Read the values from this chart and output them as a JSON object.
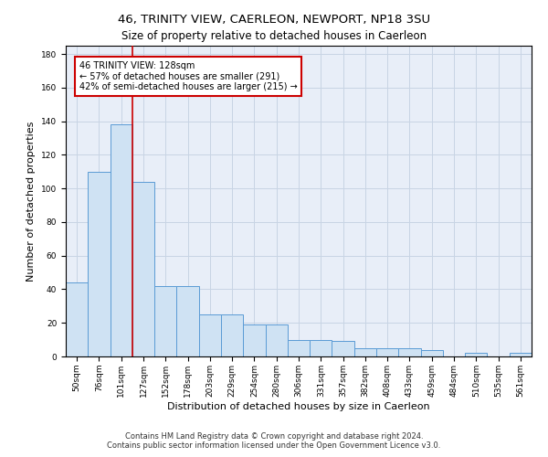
{
  "title": "46, TRINITY VIEW, CAERLEON, NEWPORT, NP18 3SU",
  "subtitle": "Size of property relative to detached houses in Caerleon",
  "xlabel": "Distribution of detached houses by size in Caerleon",
  "ylabel": "Number of detached properties",
  "bar_values": [
    44,
    110,
    138,
    104,
    42,
    42,
    25,
    25,
    19,
    19,
    10,
    10,
    9,
    5,
    5,
    5,
    4,
    0,
    2,
    0,
    2
  ],
  "bar_labels": [
    "50sqm",
    "76sqm",
    "101sqm",
    "127sqm",
    "152sqm",
    "178sqm",
    "203sqm",
    "229sqm",
    "254sqm",
    "280sqm",
    "306sqm",
    "331sqm",
    "357sqm",
    "382sqm",
    "408sqm",
    "433sqm",
    "459sqm",
    "484sqm",
    "510sqm",
    "535sqm",
    "561sqm"
  ],
  "bar_color": "#cfe2f3",
  "bar_edge_color": "#5b9bd5",
  "grid_color": "#c8d4e4",
  "background_color": "#e8eef8",
  "annotation_box_text": "46 TRINITY VIEW: 128sqm\n← 57% of detached houses are smaller (291)\n42% of semi-detached houses are larger (215) →",
  "annotation_box_color": "#ffffff",
  "annotation_box_edge_color": "#cc0000",
  "vline_color": "#cc0000",
  "ylim": [
    0,
    185
  ],
  "yticks": [
    0,
    20,
    40,
    60,
    80,
    100,
    120,
    140,
    160,
    180
  ],
  "footer_line1": "Contains HM Land Registry data © Crown copyright and database right 2024.",
  "footer_line2": "Contains public sector information licensed under the Open Government Licence v3.0.",
  "title_fontsize": 9.5,
  "subtitle_fontsize": 8.5,
  "xlabel_fontsize": 8,
  "ylabel_fontsize": 8,
  "tick_fontsize": 6.5,
  "annotation_fontsize": 7,
  "footer_fontsize": 6
}
